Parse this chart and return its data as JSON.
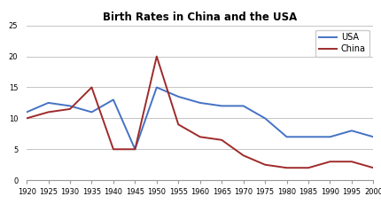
{
  "title": "Birth Rates in China and the USA",
  "years": [
    1920,
    1925,
    1930,
    1935,
    1940,
    1945,
    1950,
    1955,
    1960,
    1965,
    1970,
    1975,
    1980,
    1985,
    1990,
    1995,
    2000
  ],
  "usa": [
    11,
    12.5,
    12,
    11,
    13,
    5,
    15,
    13.5,
    12.5,
    12,
    12,
    10,
    7,
    7,
    7,
    8,
    7
  ],
  "china": [
    10,
    11,
    11.5,
    15,
    5,
    5,
    20,
    9,
    7,
    6.5,
    4,
    2.5,
    2,
    2,
    3,
    3,
    2
  ],
  "usa_color": "#4472c4",
  "china_color": "#9e2a2a",
  "ylim": [
    0,
    25
  ],
  "yticks": [
    0,
    5,
    10,
    15,
    20,
    25
  ],
  "legend_loc": "upper right",
  "bg_color": "#ffffff",
  "grid_color": "#bbbbbb",
  "title_fontsize": 8.5,
  "tick_fontsize": 6.0,
  "legend_fontsize": 7.0,
  "linewidth": 1.4
}
